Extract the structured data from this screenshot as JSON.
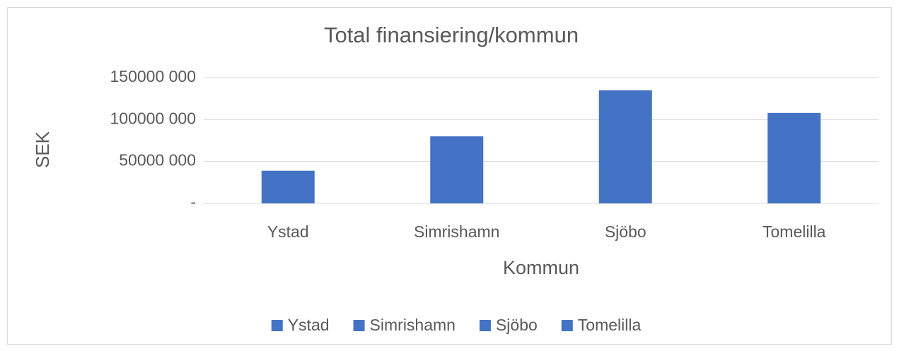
{
  "chart_data": {
    "type": "bar",
    "title": "Total finansiering/kommun",
    "x_label": "Kommun",
    "y_label": "SEK",
    "categories": [
      "Ystad",
      "Simrishamn",
      "Sjöbo",
      "Tomelilla"
    ],
    "values": [
      39000000,
      80000000,
      135000000,
      108000000
    ],
    "color": "#4472c4",
    "ylim": [
      0,
      150000000
    ],
    "yticks": [
      {
        "value": 0,
        "label": "-"
      },
      {
        "value": 50000000,
        "label": "50000 000"
      },
      {
        "value": 100000000,
        "label": "100000 000"
      },
      {
        "value": 150000000,
        "label": "150000 000"
      }
    ],
    "grid": true,
    "legend": "bottom"
  }
}
